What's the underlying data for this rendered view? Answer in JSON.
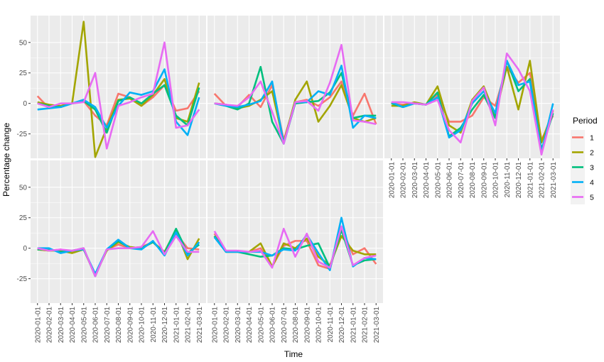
{
  "chart_data": {
    "type": "line",
    "layout": "faceted 2x3 grid, 5 panels",
    "xlabel": "Time",
    "ylabel": "Percentage change",
    "x": [
      "2020-01-01",
      "2020-02-01",
      "2020-03-01",
      "2020-04-01",
      "2020-05-01",
      "2020-06-01",
      "2020-07-01",
      "2020-08-01",
      "2020-09-01",
      "2020-10-01",
      "2020-11-01",
      "2020-12-01",
      "2021-01-01",
      "2021-02-01",
      "2021-03-01"
    ],
    "ylim": [
      -45,
      72
    ],
    "yticks": [
      -25,
      0,
      25,
      50
    ],
    "ytick_labels": [
      "-25",
      "0",
      "25",
      "50"
    ],
    "grid": true,
    "legend": {
      "title": "Period",
      "placement": "right",
      "entries": [
        "1",
        "2",
        "3",
        "4",
        "5"
      ]
    },
    "colors": {
      "1": "#F8766D",
      "2": "#A3A500",
      "3": "#00BF7D",
      "4": "#00B0F6",
      "5": "#E76BF3"
    },
    "panel_background": "#EBEBEB",
    "grid_color": "#FFFFFF",
    "panels": [
      {
        "series": [
          {
            "name": "1",
            "values": [
              6,
              -4,
              -2,
              0,
              2,
              -10,
              -18,
              8,
              5,
              -2,
              5,
              15,
              -6,
              -4,
              10
            ]
          },
          {
            "name": "2",
            "values": [
              1,
              -1,
              -2,
              0,
              67,
              -44,
              -20,
              3,
              4,
              -2,
              7,
              20,
              -12,
              -15,
              17
            ]
          },
          {
            "name": "3",
            "values": [
              0,
              -2,
              -3,
              0,
              2,
              -5,
              -24,
              2,
              5,
              0,
              8,
              15,
              -10,
              -18,
              13
            ]
          },
          {
            "name": "4",
            "values": [
              -5,
              -4,
              -3,
              0,
              3,
              -3,
              -20,
              -2,
              9,
              7,
              10,
              28,
              -15,
              -26,
              5
            ]
          },
          {
            "name": "5",
            "values": [
              0,
              -3,
              0,
              0,
              1,
              25,
              -37,
              -2,
              1,
              5,
              8,
              50,
              -20,
              -18,
              -5
            ]
          }
        ]
      },
      {
        "series": [
          {
            "name": "1",
            "values": [
              8,
              -2,
              -3,
              7,
              -3,
              15,
              -30,
              1,
              3,
              -2,
              5,
              18,
              -10,
              8,
              -17
            ]
          },
          {
            "name": "2",
            "values": [
              0,
              -1,
              -4,
              -2,
              3,
              10,
              -32,
              3,
              18,
              -15,
              -2,
              15,
              -12,
              -15,
              -12
            ]
          },
          {
            "name": "3",
            "values": [
              0,
              -2,
              -5,
              0,
              30,
              -15,
              -33,
              0,
              1,
              2,
              9,
              25,
              -12,
              -10,
              -10
            ]
          },
          {
            "name": "4",
            "values": [
              0,
              -2,
              -3,
              -1,
              2,
              18,
              -33,
              1,
              1,
              10,
              7,
              31,
              -20,
              -10,
              -12
            ]
          },
          {
            "name": "5",
            "values": [
              0,
              -1,
              -2,
              5,
              18,
              -7,
              -33,
              1,
              2,
              -6,
              17,
              48,
              -14,
              -15,
              -17
            ]
          }
        ]
      },
      {
        "series": [
          {
            "name": "1",
            "values": [
              0,
              -1,
              0,
              -1,
              7,
              -15,
              -15,
              -10,
              5,
              -2,
              30,
              17,
              25,
              -30,
              -10
            ]
          },
          {
            "name": "2",
            "values": [
              -2,
              -2,
              1,
              -1,
              14,
              -18,
              -24,
              3,
              14,
              -10,
              30,
              -5,
              35,
              -32,
              -6
            ]
          },
          {
            "name": "3",
            "values": [
              0,
              -3,
              0,
              -1,
              9,
              -27,
              -20,
              -5,
              7,
              -12,
              35,
              10,
              20,
              -38,
              -8
            ]
          },
          {
            "name": "4",
            "values": [
              1,
              -3,
              0,
              -1,
              5,
              -28,
              -22,
              0,
              10,
              -8,
              35,
              15,
              18,
              -40,
              0
            ]
          },
          {
            "name": "5",
            "values": [
              1,
              1,
              0,
              -1,
              3,
              -22,
              -32,
              2,
              13,
              -18,
              41,
              28,
              10,
              -42,
              -5
            ]
          }
        ]
      },
      {
        "series": [
          {
            "name": "1",
            "values": [
              -1,
              -2,
              -1,
              -3,
              -1,
              -22,
              -1,
              3,
              0,
              1,
              5,
              -4,
              12,
              0,
              -1
            ]
          },
          {
            "name": "2",
            "values": [
              -1,
              -2,
              -2,
              -4,
              -1,
              -22,
              -2,
              5,
              1,
              0,
              5,
              -3,
              15,
              -9,
              8
            ]
          },
          {
            "name": "3",
            "values": [
              -1,
              -1,
              -3,
              -2,
              0,
              -23,
              -1,
              6,
              0,
              0,
              5,
              -4,
              16,
              -4,
              3
            ]
          },
          {
            "name": "4",
            "values": [
              0,
              0,
              -4,
              -2,
              -1,
              -21,
              -1,
              7,
              0,
              -1,
              6,
              -6,
              13,
              -6,
              5
            ]
          },
          {
            "name": "5",
            "values": [
              0,
              -2,
              -1,
              -2,
              0,
              -23,
              -1,
              0,
              0,
              1,
              14,
              -5,
              10,
              -3,
              -3
            ]
          }
        ]
      },
      {
        "series": [
          {
            "name": "1",
            "values": [
              12,
              -3,
              -3,
              -3,
              0,
              -15,
              2,
              6,
              6,
              -14,
              -17,
              16,
              -5,
              0,
              -13
            ]
          },
          {
            "name": "2",
            "values": [
              10,
              -3,
              -3,
              -3,
              4,
              -15,
              4,
              0,
              8,
              -7,
              -14,
              10,
              -2,
              -5,
              -5
            ]
          },
          {
            "name": "3",
            "values": [
              10,
              -3,
              -3,
              -5,
              -7,
              -6,
              0,
              -1,
              2,
              4,
              -16,
              15,
              -14,
              -10,
              -9
            ]
          },
          {
            "name": "4",
            "values": [
              9,
              -3,
              -3,
              -3,
              -3,
              -6,
              -1,
              -2,
              11,
              -4,
              -18,
              25,
              -15,
              -8,
              -9
            ]
          },
          {
            "name": "5",
            "values": [
              14,
              -2,
              -2,
              -3,
              -2,
              -16,
              16,
              -7,
              12,
              -11,
              -16,
              18,
              -14,
              -8,
              -6
            ]
          }
        ]
      }
    ]
  }
}
